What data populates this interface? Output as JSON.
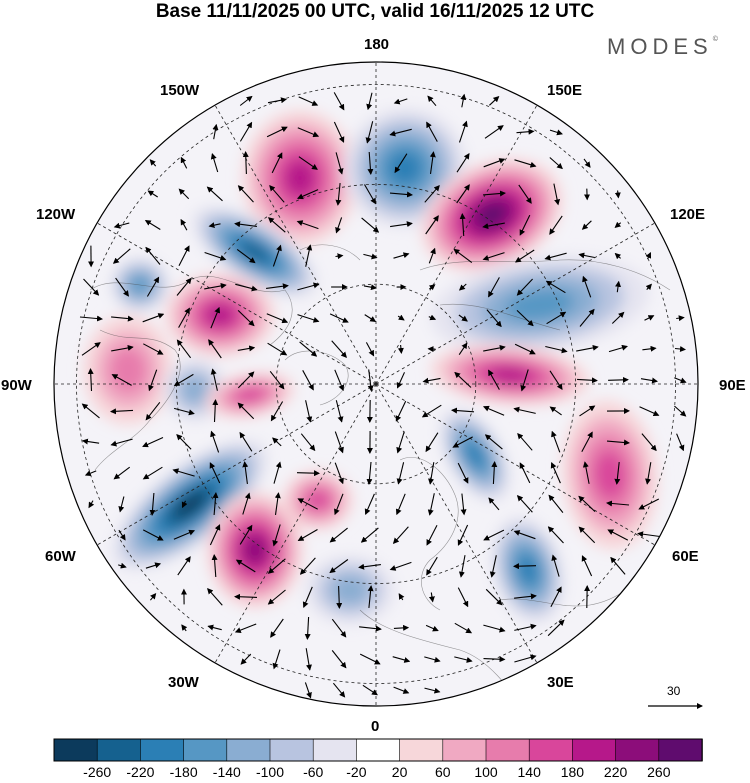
{
  "header": {
    "title": "Base 11/11/2025 00 UTC, valid 16/11/2025 12 UTC",
    "brand": "MODES",
    "brand_mark": "©"
  },
  "map": {
    "projection": "north-polar-stereographic",
    "longitude_labels": {
      "lon_180": "180",
      "lon_150e": "150E",
      "lon_120e": "120E",
      "lon_90e": "90E",
      "lon_60e": "60E",
      "lon_30e": "30E",
      "lon_0": "0",
      "lon_30w": "30W",
      "lon_60w": "60W",
      "lon_90w": "90W",
      "lon_120w": "120W",
      "lon_150w": "150W"
    },
    "anomalies": [
      {
        "id": "ridge-150w",
        "sign": "positive",
        "peak": 180
      },
      {
        "id": "trough-170e",
        "sign": "negative",
        "peak": -180
      },
      {
        "id": "ridge-135e",
        "sign": "positive",
        "peak": 260
      },
      {
        "id": "trough-120w",
        "sign": "negative",
        "peak": -220
      },
      {
        "id": "trough-110w",
        "sign": "negative",
        "peak": -140
      },
      {
        "id": "ridge-105w",
        "sign": "positive",
        "peak": 180
      },
      {
        "id": "ridge-95w",
        "sign": "positive",
        "peak": 100
      },
      {
        "id": "trough-85w",
        "sign": "negative",
        "peak": -100
      },
      {
        "id": "ridge-80w",
        "sign": "positive",
        "peak": 140
      },
      {
        "id": "trough-95e",
        "sign": "negative",
        "peak": -140
      },
      {
        "id": "ridge-90e",
        "sign": "positive",
        "peak": 180
      },
      {
        "id": "trough-45e",
        "sign": "negative",
        "peak": -180
      },
      {
        "id": "ridge-70e",
        "sign": "positive",
        "peak": 140
      },
      {
        "id": "trough-55w",
        "sign": "negative",
        "peak": -260
      },
      {
        "id": "ridge-45w",
        "sign": "positive",
        "peak": 220
      },
      {
        "id": "ridge-35w",
        "sign": "positive",
        "peak": 140
      },
      {
        "id": "trough-20e",
        "sign": "negative",
        "peak": -180
      },
      {
        "id": "trough-10w",
        "sign": "negative",
        "peak": -100
      }
    ]
  },
  "wind_reference": {
    "value": "30"
  },
  "colorbar": {
    "colors": [
      "#0c3a5c",
      "#15618f",
      "#2b7fb5",
      "#5697c4",
      "#8aadd2",
      "#b8c4e0",
      "#e5e4f0",
      "#ffffff",
      "#f7d7da",
      "#f0a9c2",
      "#e77cac",
      "#d9469b",
      "#b6188a",
      "#8c0d7a",
      "#5f0c6e"
    ],
    "ticks": [
      "-260",
      "-220",
      "-180",
      "-140",
      "-100",
      "-60",
      "-20",
      "20",
      "60",
      "100",
      "140",
      "180",
      "220",
      "260"
    ]
  }
}
